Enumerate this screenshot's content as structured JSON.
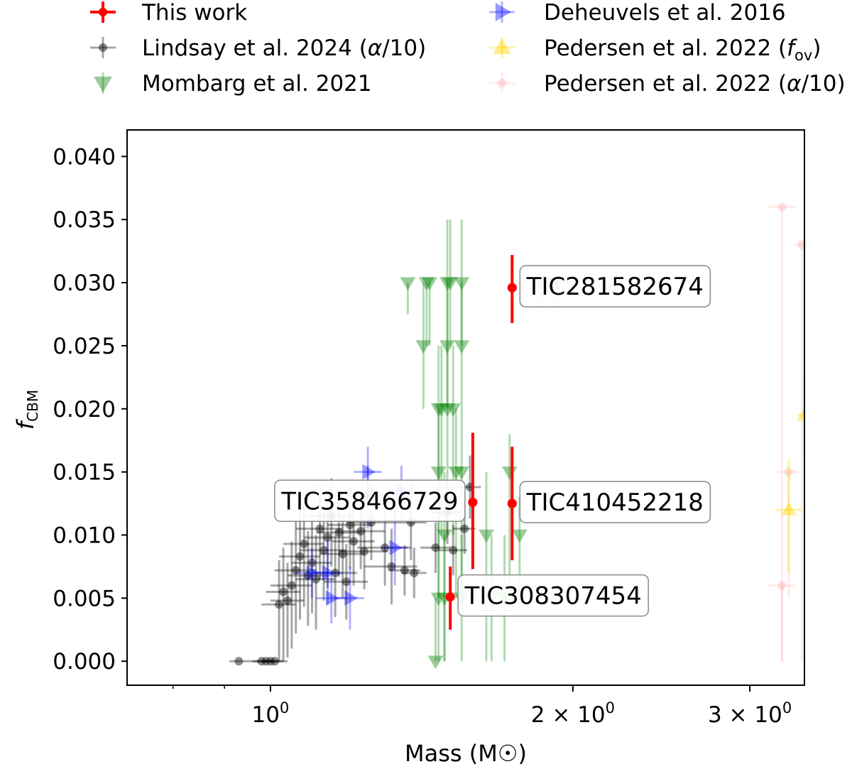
{
  "chart_data": {
    "type": "scatter",
    "title": "",
    "xlabel": "Mass (M☉)",
    "ylabel": "f_CBM",
    "xscale": "log",
    "xlim": [
      0.72,
      3.4
    ],
    "ylim": [
      -0.0019,
      0.0421
    ],
    "grid": false,
    "legend_position": "top (above plot, two columns)",
    "y_ticks": [
      "0.000",
      "0.005",
      "0.010",
      "0.015",
      "0.020",
      "0.025",
      "0.030",
      "0.035",
      "0.040"
    ],
    "x_major_ticks": [
      {
        "value": 1,
        "label": "10",
        "exp": "0"
      },
      {
        "value": 2,
        "label": "2 × 10",
        "exp": "0"
      },
      {
        "value": 3,
        "label": "3 × 10",
        "exp": "0"
      }
    ],
    "x_minor_ticks": [
      0.8,
      0.9,
      2.0
    ],
    "legend": [
      {
        "label": "This work",
        "color": "#ff0000",
        "marker": "circle",
        "alpha": 1.0
      },
      {
        "label": "Lindsay et al. 2024 (",
        "sym": "α",
        "suffix": "/10)",
        "color": "#000000",
        "marker": "circle",
        "alpha": 0.35
      },
      {
        "label": "Mombarg et al. 2021",
        "color": "#008000",
        "marker": "triangle-down",
        "alpha": 0.3
      },
      {
        "label": "Deheuvels et al. 2016",
        "color": "#0000ff",
        "marker": "triangle-right",
        "alpha": 0.3
      },
      {
        "label": "Pedersen et al. 2022 (",
        "sym": "f",
        "sub": "ov",
        "suffix": ")",
        "color": "#ffd700",
        "marker": "triangle-up",
        "alpha": 0.35
      },
      {
        "label": "Pedersen et al. 2022 (",
        "sym": "α",
        "suffix": "/10)",
        "color": "#ff9999",
        "marker": "circle",
        "alpha": 0.2
      }
    ],
    "series": [
      {
        "name": "This work",
        "color": "#ff0000",
        "marker": "circle",
        "alpha": 1.0,
        "points": [
          {
            "x": 1.74,
            "y": 0.0296,
            "yerr_lo": 0.0028,
            "yerr_hi": 0.0026,
            "label": "TIC281582674"
          },
          {
            "x": 1.59,
            "y": 0.0126,
            "yerr_lo": 0.0053,
            "yerr_hi": 0.0055,
            "label": "TIC358466729"
          },
          {
            "x": 1.74,
            "y": 0.0125,
            "yerr_lo": 0.0045,
            "yerr_hi": 0.0045,
            "label": "TIC410452218"
          },
          {
            "x": 1.51,
            "y": 0.0051,
            "yerr_lo": 0.0026,
            "yerr_hi": 0.0024,
            "label": "TIC308307454"
          }
        ]
      },
      {
        "name": "Lindsay et al. 2024 (α/10)",
        "color": "#000000",
        "marker": "circle",
        "alpha": 0.35,
        "points": [
          {
            "x": 0.93,
            "y": 0.0,
            "xerr": 0.02,
            "yerr_lo": 0.0,
            "yerr_hi": 0.0
          },
          {
            "x": 0.98,
            "y": 0.0,
            "xerr": 0.03,
            "yerr_lo": 0.0,
            "yerr_hi": 0.0
          },
          {
            "x": 0.99,
            "y": 0.0,
            "xerr": 0.03,
            "yerr_lo": 0.0,
            "yerr_hi": 0.0
          },
          {
            "x": 1.0,
            "y": 0.0,
            "xerr": 0.03,
            "yerr_lo": 0.0,
            "yerr_hi": 0.0
          },
          {
            "x": 1.01,
            "y": 0.0,
            "xerr": 0.03,
            "yerr_lo": 0.0,
            "yerr_hi": 0.0
          },
          {
            "x": 1.02,
            "y": 0.0045,
            "xerr": 0.04,
            "yerr_lo": 0.0045,
            "yerr_hi": 0.0035
          },
          {
            "x": 1.03,
            "y": 0.0055,
            "xerr": 0.04,
            "yerr_lo": 0.0055,
            "yerr_hi": 0.0035
          },
          {
            "x": 1.04,
            "y": 0.0048,
            "xerr": 0.04,
            "yerr_lo": 0.0045,
            "yerr_hi": 0.003
          },
          {
            "x": 1.05,
            "y": 0.006,
            "xerr": 0.05,
            "yerr_lo": 0.005,
            "yerr_hi": 0.0035
          },
          {
            "x": 1.06,
            "y": 0.0072,
            "xerr": 0.05,
            "yerr_lo": 0.005,
            "yerr_hi": 0.004
          },
          {
            "x": 1.07,
            "y": 0.0083,
            "xerr": 0.05,
            "yerr_lo": 0.005,
            "yerr_hi": 0.004
          },
          {
            "x": 1.08,
            "y": 0.0093,
            "xerr": 0.05,
            "yerr_lo": 0.005,
            "yerr_hi": 0.004
          },
          {
            "x": 1.09,
            "y": 0.0068,
            "xerr": 0.05,
            "yerr_lo": 0.004,
            "yerr_hi": 0.0035
          },
          {
            "x": 1.1,
            "y": 0.0078,
            "xerr": 0.05,
            "yerr_lo": 0.004,
            "yerr_hi": 0.0035
          },
          {
            "x": 1.11,
            "y": 0.0065,
            "xerr": 0.05,
            "yerr_lo": 0.004,
            "yerr_hi": 0.0035
          },
          {
            "x": 1.12,
            "y": 0.0105,
            "xerr": 0.06,
            "yerr_lo": 0.004,
            "yerr_hi": 0.0035
          },
          {
            "x": 1.13,
            "y": 0.0088,
            "xerr": 0.06,
            "yerr_lo": 0.004,
            "yerr_hi": 0.0035
          },
          {
            "x": 1.14,
            "y": 0.0098,
            "xerr": 0.06,
            "yerr_lo": 0.004,
            "yerr_hi": 0.003
          },
          {
            "x": 1.15,
            "y": 0.0115,
            "xerr": 0.06,
            "yerr_lo": 0.004,
            "yerr_hi": 0.003
          },
          {
            "x": 1.16,
            "y": 0.007,
            "xerr": 0.06,
            "yerr_lo": 0.0035,
            "yerr_hi": 0.003
          },
          {
            "x": 1.17,
            "y": 0.0102,
            "xerr": 0.06,
            "yerr_lo": 0.0035,
            "yerr_hi": 0.003
          },
          {
            "x": 1.18,
            "y": 0.0085,
            "xerr": 0.06,
            "yerr_lo": 0.0035,
            "yerr_hi": 0.003
          },
          {
            "x": 1.19,
            "y": 0.0063,
            "xerr": 0.06,
            "yerr_lo": 0.003,
            "yerr_hi": 0.003
          },
          {
            "x": 1.2,
            "y": 0.0108,
            "xerr": 0.06,
            "yerr_lo": 0.0035,
            "yerr_hi": 0.003
          },
          {
            "x": 1.21,
            "y": 0.0095,
            "xerr": 0.06,
            "yerr_lo": 0.0035,
            "yerr_hi": 0.003
          },
          {
            "x": 1.23,
            "y": 0.0103,
            "xerr": 0.07,
            "yerr_lo": 0.003,
            "yerr_hi": 0.003
          },
          {
            "x": 1.24,
            "y": 0.0087,
            "xerr": 0.07,
            "yerr_lo": 0.003,
            "yerr_hi": 0.003
          },
          {
            "x": 1.26,
            "y": 0.011,
            "xerr": 0.07,
            "yerr_lo": 0.003,
            "yerr_hi": 0.003
          },
          {
            "x": 1.3,
            "y": 0.009,
            "xerr": 0.08,
            "yerr_lo": 0.003,
            "yerr_hi": 0.003
          },
          {
            "x": 1.32,
            "y": 0.0075,
            "xerr": 0.08,
            "yerr_lo": 0.003,
            "yerr_hi": 0.003
          },
          {
            "x": 1.36,
            "y": 0.0072,
            "xerr": 0.05,
            "yerr_lo": 0.002,
            "yerr_hi": 0.002
          },
          {
            "x": 1.38,
            "y": 0.011,
            "xerr": 0.05,
            "yerr_lo": 0.003,
            "yerr_hi": 0.003
          },
          {
            "x": 1.39,
            "y": 0.007,
            "xerr": 0.04,
            "yerr_lo": 0.002,
            "yerr_hi": 0.002
          },
          {
            "x": 1.46,
            "y": 0.009,
            "xerr": 0.05,
            "yerr_lo": 0.002,
            "yerr_hi": 0.002
          },
          {
            "x": 1.5,
            "y": 0.0118,
            "xerr": 0.05,
            "yerr_lo": 0.0025,
            "yerr_hi": 0.0025
          },
          {
            "x": 1.52,
            "y": 0.0088,
            "xerr": 0.05,
            "yerr_lo": 0.002,
            "yerr_hi": 0.002
          },
          {
            "x": 1.56,
            "y": 0.0105,
            "xerr": 0.04,
            "yerr_lo": 0.002,
            "yerr_hi": 0.002
          },
          {
            "x": 1.58,
            "y": 0.0138,
            "xerr": 0.04,
            "yerr_lo": 0.0025,
            "yerr_hi": 0.0025
          }
        ]
      },
      {
        "name": "Mombarg et al. 2021",
        "color": "#008000",
        "marker": "triangle-down",
        "alpha": 0.3,
        "points": [
          {
            "x": 1.37,
            "y": 0.03,
            "yerr_lo": 0.0025,
            "yerr_hi": 0.0
          },
          {
            "x": 1.43,
            "y": 0.03,
            "yerr_lo": 0.005,
            "yerr_hi": 0.0
          },
          {
            "x": 1.44,
            "y": 0.03,
            "yerr_lo": 0.005,
            "yerr_hi": 0.0
          },
          {
            "x": 1.5,
            "y": 0.03,
            "yerr_lo": 0.005,
            "yerr_hi": 0.005
          },
          {
            "x": 1.51,
            "y": 0.03,
            "yerr_lo": 0.005,
            "yerr_hi": 0.005
          },
          {
            "x": 1.55,
            "y": 0.03,
            "yerr_lo": 0.005,
            "yerr_hi": 0.005
          },
          {
            "x": 1.86,
            "y": 0.03,
            "yerr_lo": 0.002,
            "yerr_hi": 0.0
          },
          {
            "x": 1.93,
            "y": 0.03,
            "yerr_lo": 0.002,
            "yerr_hi": 0.0
          },
          {
            "x": 1.42,
            "y": 0.025,
            "yerr_lo": 0.005,
            "yerr_hi": 0.005
          },
          {
            "x": 1.5,
            "y": 0.025,
            "yerr_lo": 0.005,
            "yerr_hi": 0.005
          },
          {
            "x": 1.55,
            "y": 0.025,
            "yerr_lo": 0.005,
            "yerr_hi": 0.005
          },
          {
            "x": 1.47,
            "y": 0.02,
            "yerr_lo": 0.01,
            "yerr_hi": 0.005
          },
          {
            "x": 1.48,
            "y": 0.02,
            "yerr_lo": 0.01,
            "yerr_hi": 0.005
          },
          {
            "x": 1.5,
            "y": 0.02,
            "yerr_lo": 0.01,
            "yerr_hi": 0.005
          },
          {
            "x": 1.52,
            "y": 0.02,
            "yerr_lo": 0.01,
            "yerr_hi": 0.005
          },
          {
            "x": 1.47,
            "y": 0.015,
            "yerr_lo": 0.01,
            "yerr_hi": 0.005
          },
          {
            "x": 1.53,
            "y": 0.015,
            "yerr_lo": 0.01,
            "yerr_hi": 0.005
          },
          {
            "x": 1.55,
            "y": 0.015,
            "yerr_lo": 0.01,
            "yerr_hi": 0.005
          },
          {
            "x": 1.73,
            "y": 0.015,
            "yerr_lo": 0.01,
            "yerr_hi": 0.003
          },
          {
            "x": 1.49,
            "y": 0.01,
            "yerr_lo": 0.01,
            "yerr_hi": 0.005
          },
          {
            "x": 1.64,
            "y": 0.01,
            "yerr_lo": 0.01,
            "yerr_hi": 0.005
          },
          {
            "x": 1.77,
            "y": 0.01,
            "yerr_lo": 0.005,
            "yerr_hi": 0.003
          },
          {
            "x": 1.47,
            "y": 0.005,
            "yerr_lo": 0.005,
            "yerr_hi": 0.005
          },
          {
            "x": 1.49,
            "y": 0.005,
            "yerr_lo": 0.005,
            "yerr_hi": 0.005
          },
          {
            "x": 1.55,
            "y": 0.005,
            "yerr_lo": 0.005,
            "yerr_hi": 0.005
          },
          {
            "x": 1.66,
            "y": 0.005,
            "yerr_lo": 0.005,
            "yerr_hi": 0.005
          },
          {
            "x": 1.71,
            "y": 0.005,
            "yerr_lo": 0.005,
            "yerr_hi": 0.005
          },
          {
            "x": 1.46,
            "y": 0.0,
            "yerr_lo": 0.0,
            "yerr_hi": 0.005
          }
        ]
      },
      {
        "name": "Deheuvels et al. 2016",
        "color": "#0000ff",
        "marker": "triangle-right",
        "alpha": 0.3,
        "points": [
          {
            "x": 1.1,
            "y": 0.007,
            "xerr": 0.04,
            "yerr_lo": 0.002,
            "yerr_hi": 0.002
          },
          {
            "x": 1.14,
            "y": 0.007,
            "xerr": 0.04,
            "yerr_lo": 0.0025,
            "yerr_hi": 0.0025
          },
          {
            "x": 1.15,
            "y": 0.005,
            "xerr": 0.04,
            "yerr_lo": 0.002,
            "yerr_hi": 0.002
          },
          {
            "x": 1.2,
            "y": 0.005,
            "xerr": 0.04,
            "yerr_lo": 0.0025,
            "yerr_hi": 0.0025
          },
          {
            "x": 1.25,
            "y": 0.015,
            "xerr": 0.04,
            "yerr_lo": 0.002,
            "yerr_hi": 0.002
          },
          {
            "x": 1.25,
            "y": 0.013,
            "xerr": 0.04,
            "yerr_lo": 0.0025,
            "yerr_hi": 0.0025
          },
          {
            "x": 1.33,
            "y": 0.009,
            "xerr": 0.04,
            "yerr_lo": 0.003,
            "yerr_hi": 0.003
          },
          {
            "x": 1.35,
            "y": 0.0135,
            "xerr": 0.04,
            "yerr_lo": 0.002,
            "yerr_hi": 0.002
          }
        ]
      },
      {
        "name": "Pedersen et al. 2022 (f_ov)",
        "color": "#ffd700",
        "marker": "triangle-up",
        "alpha": 0.35,
        "points": [
          {
            "x": 3.28,
            "y": 0.012,
            "xerr": 0.1,
            "yerr_lo": 0.005,
            "yerr_hi": 0.004
          },
          {
            "x": 3.4,
            "y": 0.0195,
            "xerr": 0.05,
            "yerr_lo": 0.003,
            "yerr_hi": 0.003
          }
        ]
      },
      {
        "name": "Pedersen et al. 2022 (α/10)",
        "color": "#ff9999",
        "marker": "circle",
        "alpha": 0.2,
        "points": [
          {
            "x": 3.23,
            "y": 0.036,
            "xerr": 0.1,
            "yerr_lo": 0.036,
            "yerr_hi": 0.0
          },
          {
            "x": 3.23,
            "y": 0.006,
            "xerr": 0.1,
            "yerr_lo": 0.006,
            "yerr_hi": 0.0
          },
          {
            "x": 3.28,
            "y": 0.015,
            "xerr": 0.08,
            "yerr_lo": 0.01,
            "yerr_hi": 0.0
          },
          {
            "x": 3.38,
            "y": 0.033,
            "xerr": 0.06,
            "yerr_lo": 0.033,
            "yerr_hi": 0.0
          }
        ]
      }
    ],
    "annotations": [
      {
        "text": "TIC281582674",
        "x": 1.74,
        "y": 0.0296,
        "side": "right"
      },
      {
        "text": "TIC358466729",
        "x": 1.59,
        "y": 0.0126,
        "side": "left"
      },
      {
        "text": "TIC410452218",
        "x": 1.74,
        "y": 0.0125,
        "side": "right"
      },
      {
        "text": "TIC308307454",
        "x": 1.51,
        "y": 0.0051,
        "side": "right"
      }
    ]
  }
}
